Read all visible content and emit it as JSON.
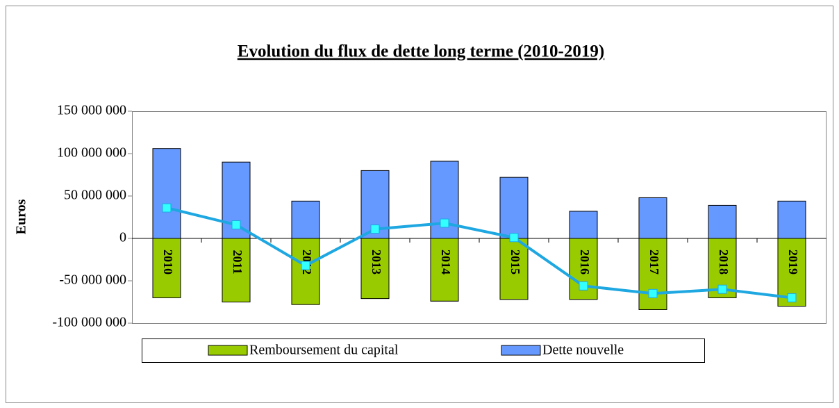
{
  "chart_data": {
    "type": "bar",
    "title": "Evolution du flux de dette long terme (2010-2019)",
    "y_label": "Euros",
    "categories": [
      "2010",
      "2011",
      "2012",
      "2013",
      "2014",
      "2015",
      "2016",
      "2017",
      "2018",
      "2019"
    ],
    "series": [
      {
        "name": "Remboursement du capital",
        "color": "#99cc00",
        "values": [
          -70000000,
          -75000000,
          -78000000,
          -71000000,
          -74000000,
          -72000000,
          -72000000,
          -84000000,
          -70000000,
          -80000000
        ]
      },
      {
        "name": "Dette nouvelle",
        "color": "#6699ff",
        "values": [
          106000000,
          90000000,
          44000000,
          80000000,
          91000000,
          72000000,
          32000000,
          48000000,
          39000000,
          44000000
        ]
      }
    ],
    "line": {
      "color": "#1ea7e1",
      "marker_color": "#33ffff",
      "values": [
        36000000,
        16000000,
        -32000000,
        11000000,
        18000000,
        1000000,
        -56000000,
        -65000000,
        -60000000,
        -70000000
      ]
    },
    "ylim": [
      -100000000,
      150000000
    ],
    "yticks": [
      {
        "value": -100000000,
        "label": "-100 000 000"
      },
      {
        "value": -50000000,
        "label": "-50 000 000"
      },
      0,
      {
        "value": 50000000,
        "label": "50 000 000"
      },
      {
        "value": 100000000,
        "label": "100 000 000"
      },
      {
        "value": 150000000,
        "label": "150 000 000"
      }
    ]
  }
}
